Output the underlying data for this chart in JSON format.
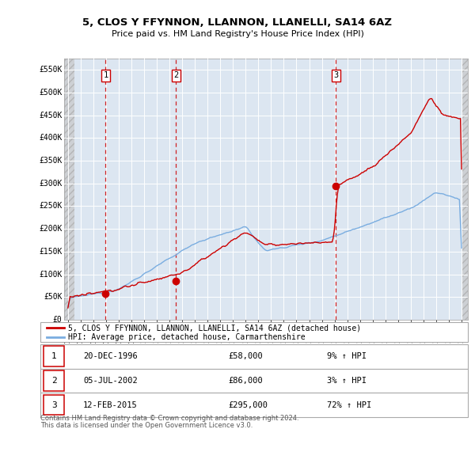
{
  "title": "5, CLOS Y FFYNNON, LLANNON, LLANELLI, SA14 6AZ",
  "subtitle": "Price paid vs. HM Land Registry's House Price Index (HPI)",
  "xlim": [
    1993.7,
    2025.5
  ],
  "ylim": [
    0,
    575000
  ],
  "yticks": [
    0,
    50000,
    100000,
    150000,
    200000,
    250000,
    300000,
    350000,
    400000,
    450000,
    500000,
    550000
  ],
  "ytick_labels": [
    "£0",
    "£50K",
    "£100K",
    "£150K",
    "£200K",
    "£250K",
    "£300K",
    "£350K",
    "£400K",
    "£450K",
    "£500K",
    "£550K"
  ],
  "sales": [
    {
      "date_num": 1996.97,
      "price": 58000,
      "label": "1"
    },
    {
      "date_num": 2002.51,
      "price": 86000,
      "label": "2"
    },
    {
      "date_num": 2015.11,
      "price": 295000,
      "label": "3"
    }
  ],
  "sale_color": "#cc0000",
  "hpi_color": "#7aade0",
  "background_color": "#dce6f1",
  "grid_color": "#ffffff",
  "legend_entries": [
    "5, CLOS Y FFYNNON, LLANNON, LLANELLI, SA14 6AZ (detached house)",
    "HPI: Average price, detached house, Carmarthenshire"
  ],
  "table_rows": [
    {
      "num": "1",
      "date": "20-DEC-1996",
      "price": "£58,000",
      "hpi": "9% ↑ HPI"
    },
    {
      "num": "2",
      "date": "05-JUL-2002",
      "price": "£86,000",
      "hpi": "3% ↑ HPI"
    },
    {
      "num": "3",
      "date": "12-FEB-2015",
      "price": "£295,000",
      "hpi": "72% ↑ HPI"
    }
  ],
  "footer": [
    "Contains HM Land Registry data © Crown copyright and database right 2024.",
    "This data is licensed under the Open Government Licence v3.0."
  ]
}
